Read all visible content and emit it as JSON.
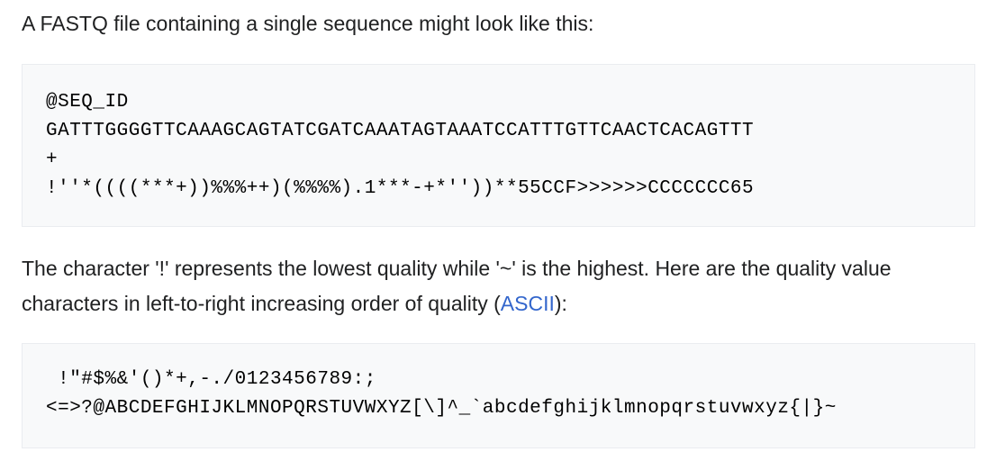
{
  "intro": "A FASTQ file containing a single sequence might look like this:",
  "fastq_lines": [
    "@SEQ_ID",
    "GATTTGGGGTTCAAAGCAGTATCGATCAAATAGTAAATCCATTTGTTCAACTCACAGTTT",
    "+",
    "!''*((((***+))%%%++)(%%%%).1***-+*''))**55CCF>>>>>>CCCCCCC65"
  ],
  "quality": {
    "text_before": "The character '!' represents the lowest quality while '~' is the highest. Here are the quality value",
    "text_line2": "characters in left-to-right increasing order of quality (",
    "link_text": "ASCII",
    "text_after": "):"
  },
  "ascii_lines": [
    " !\"#$%&'()*+,-./0123456789:;",
    "<=>?@ABCDEFGHIJKLMNOPQRSTUVWXYZ[\\]^_`abcdefghijklmnopqrstuvwxyz{|}~"
  ]
}
